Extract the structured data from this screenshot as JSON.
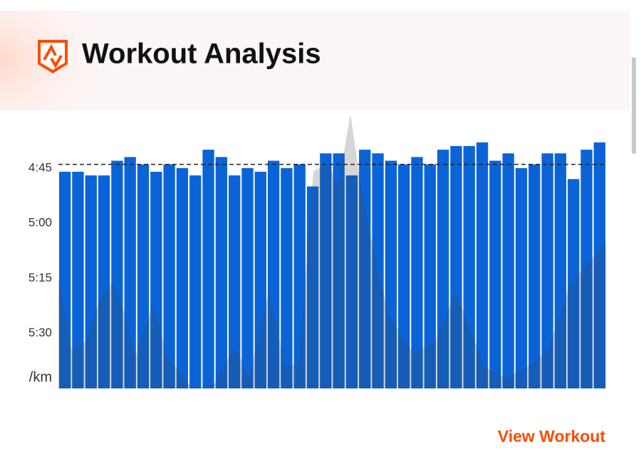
{
  "header": {
    "title": "Workout Analysis"
  },
  "chart_data": {
    "type": "bar",
    "y_unit_label": "/km",
    "values": [
      286,
      286,
      287,
      287,
      283,
      282,
      284,
      286,
      284,
      285,
      287,
      280,
      282,
      287,
      285,
      286,
      283,
      285,
      284,
      290,
      281,
      281,
      287,
      280,
      281,
      283,
      284,
      282,
      284,
      280,
      279,
      279,
      278,
      283,
      281,
      285,
      284,
      281,
      281,
      288,
      280,
      278
    ],
    "color": "#0a64d8",
    "ylim": [
      345,
      270
    ],
    "yticks": [
      {
        "value": 285,
        "label": "4:45"
      },
      {
        "value": 300,
        "label": "5:00"
      },
      {
        "value": 315,
        "label": "5:15"
      },
      {
        "value": 330,
        "label": "5:30"
      }
    ],
    "average": 284,
    "grid": false
  },
  "button": {
    "label": "View Workout"
  }
}
